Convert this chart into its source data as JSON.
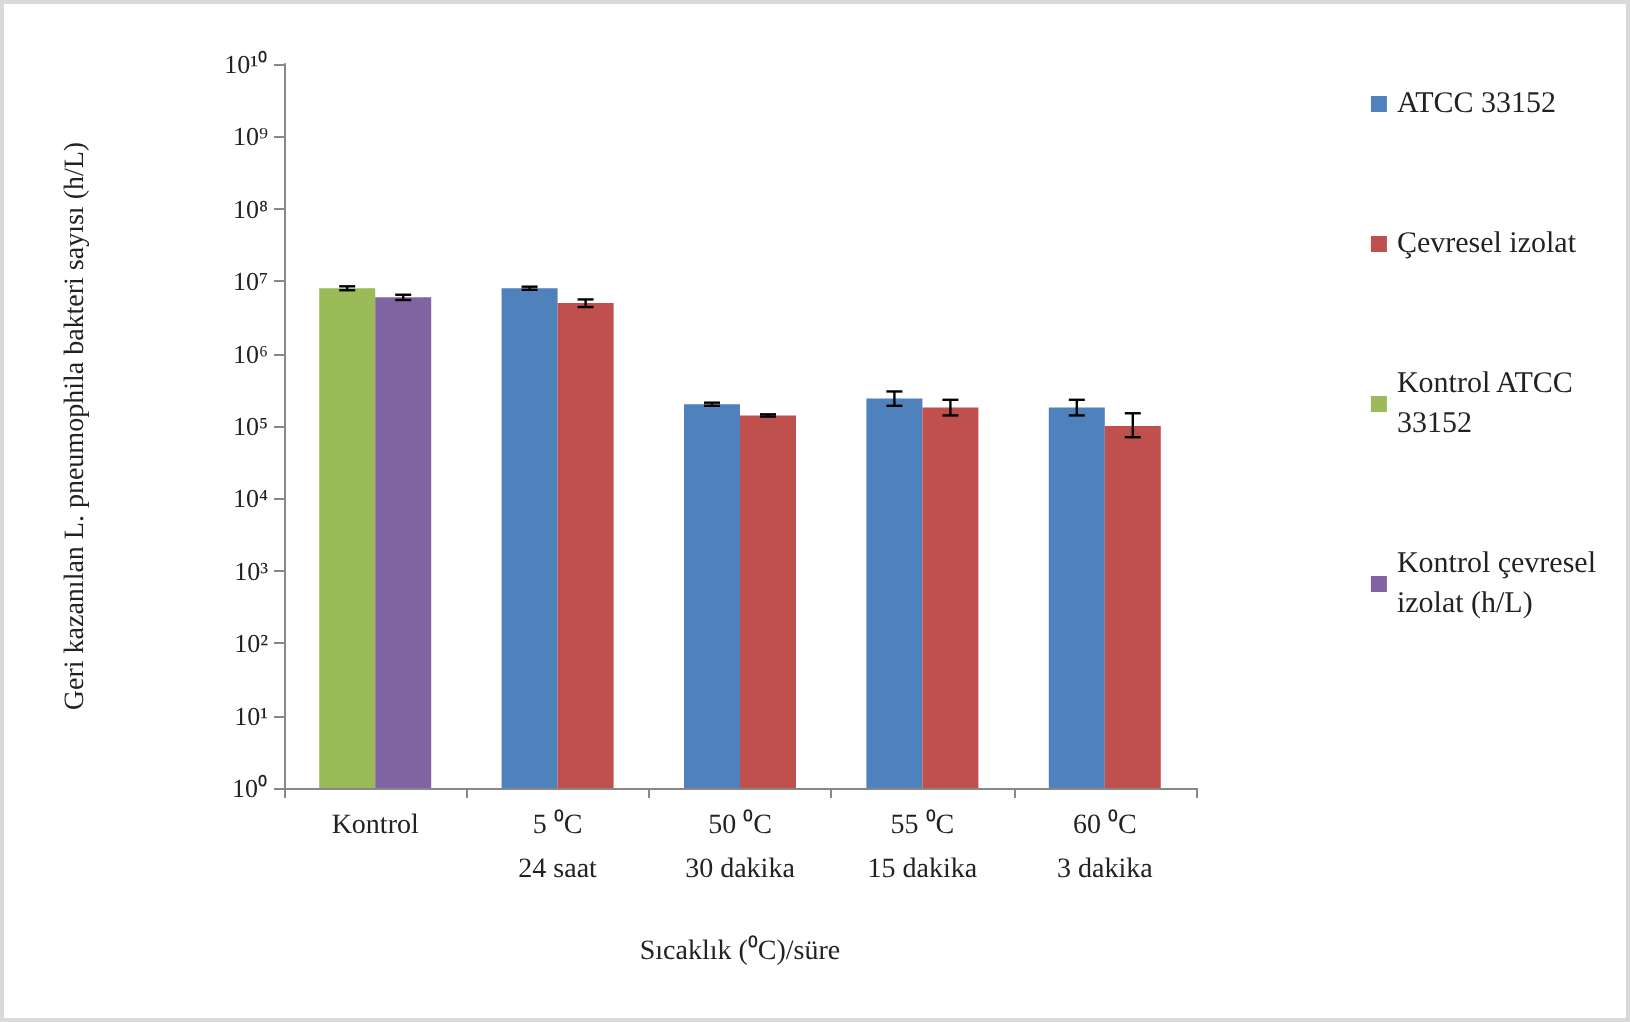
{
  "chart_data": {
    "type": "bar",
    "xlabel": "Sıcaklık (⁰C)/süre",
    "ylabel": "Geri kazanılan L. pneumophila bakteri sayısı (h/L)",
    "categories": [
      "Kontrol",
      "5 ⁰C\n24 saat",
      "50 ⁰C\n30 dakika",
      "55 ⁰C\n15 dakika",
      "60 ⁰C\n3 dakika"
    ],
    "series": [
      {
        "name": "ATCC 33152",
        "color": "#4f81bd",
        "values": [
          null,
          8000000,
          200000,
          240000,
          180000
        ],
        "errors": [
          null,
          [
            7600000,
            8400000
          ],
          [
            190000,
            210000
          ],
          [
            190000,
            300000
          ],
          [
            140000,
            230000
          ]
        ]
      },
      {
        "name": "Çevresel izolat",
        "color": "#c0504d",
        "values": [
          null,
          5000000,
          140000,
          180000,
          100000
        ],
        "errors": [
          null,
          [
            4400000,
            5600000
          ],
          [
            135000,
            145000
          ],
          [
            140000,
            230000
          ],
          [
            70000,
            150000
          ]
        ]
      },
      {
        "name": "Kontrol ATCC 33152",
        "color": "#9bbb59",
        "values": [
          8000000,
          null,
          null,
          null,
          null
        ],
        "errors": [
          [
            7500000,
            8500000
          ],
          null,
          null,
          null,
          null
        ]
      },
      {
        "name": "Kontrol çevresel izolat (h/L)",
        "color": "#8064a2",
        "values": [
          6000000,
          null,
          null,
          null,
          null
        ],
        "errors": [
          [
            5500000,
            6500000
          ],
          null,
          null,
          null,
          null
        ]
      }
    ],
    "log": true,
    "ylim": [
      1,
      10000000000
    ],
    "yticks": [
      {
        "value": 1,
        "label": "10⁰"
      },
      {
        "value": 10,
        "label": "10¹"
      },
      {
        "value": 100,
        "label": "10²"
      },
      {
        "value": 1000,
        "label": "10³"
      },
      {
        "value": 10000,
        "label": "10⁴"
      },
      {
        "value": 100000,
        "label": "10⁵"
      },
      {
        "value": 1000000,
        "label": "10⁶"
      },
      {
        "value": 10000000,
        "label": "10⁷"
      },
      {
        "value": 100000000,
        "label": "10⁸"
      },
      {
        "value": 1000000000,
        "label": "10⁹"
      },
      {
        "value": 10000000000,
        "label": "10¹⁰"
      }
    ],
    "grid": false,
    "legend": "right"
  }
}
